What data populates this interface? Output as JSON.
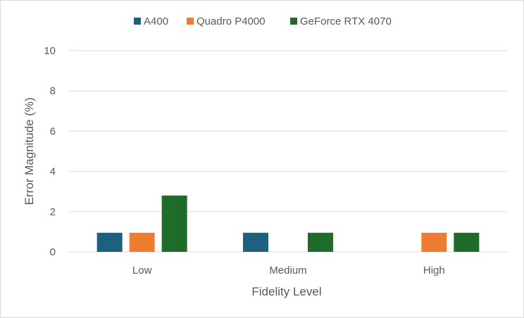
{
  "chart_data": {
    "type": "bar",
    "title": "",
    "xlabel": "Fidelity Level",
    "ylabel": "Error Magnitude (%)",
    "categories": [
      "Low",
      "Medium",
      "High"
    ],
    "ylim": [
      0,
      10
    ],
    "yticks": [
      "0",
      "2",
      "4",
      "6",
      "8",
      "10"
    ],
    "grid": true,
    "legend_position": "top",
    "series": [
      {
        "name": "A400",
        "color": "#1f5f7f",
        "values": [
          0.95,
          0.95,
          0
        ]
      },
      {
        "name": "Quadro P4000",
        "color": "#ed7d31",
        "values": [
          0.95,
          0,
          0.95
        ]
      },
      {
        "name": "GeForce RTX 4070",
        "color": "#1e6b2a",
        "values": [
          2.8,
          0.95,
          0.95
        ]
      }
    ]
  }
}
